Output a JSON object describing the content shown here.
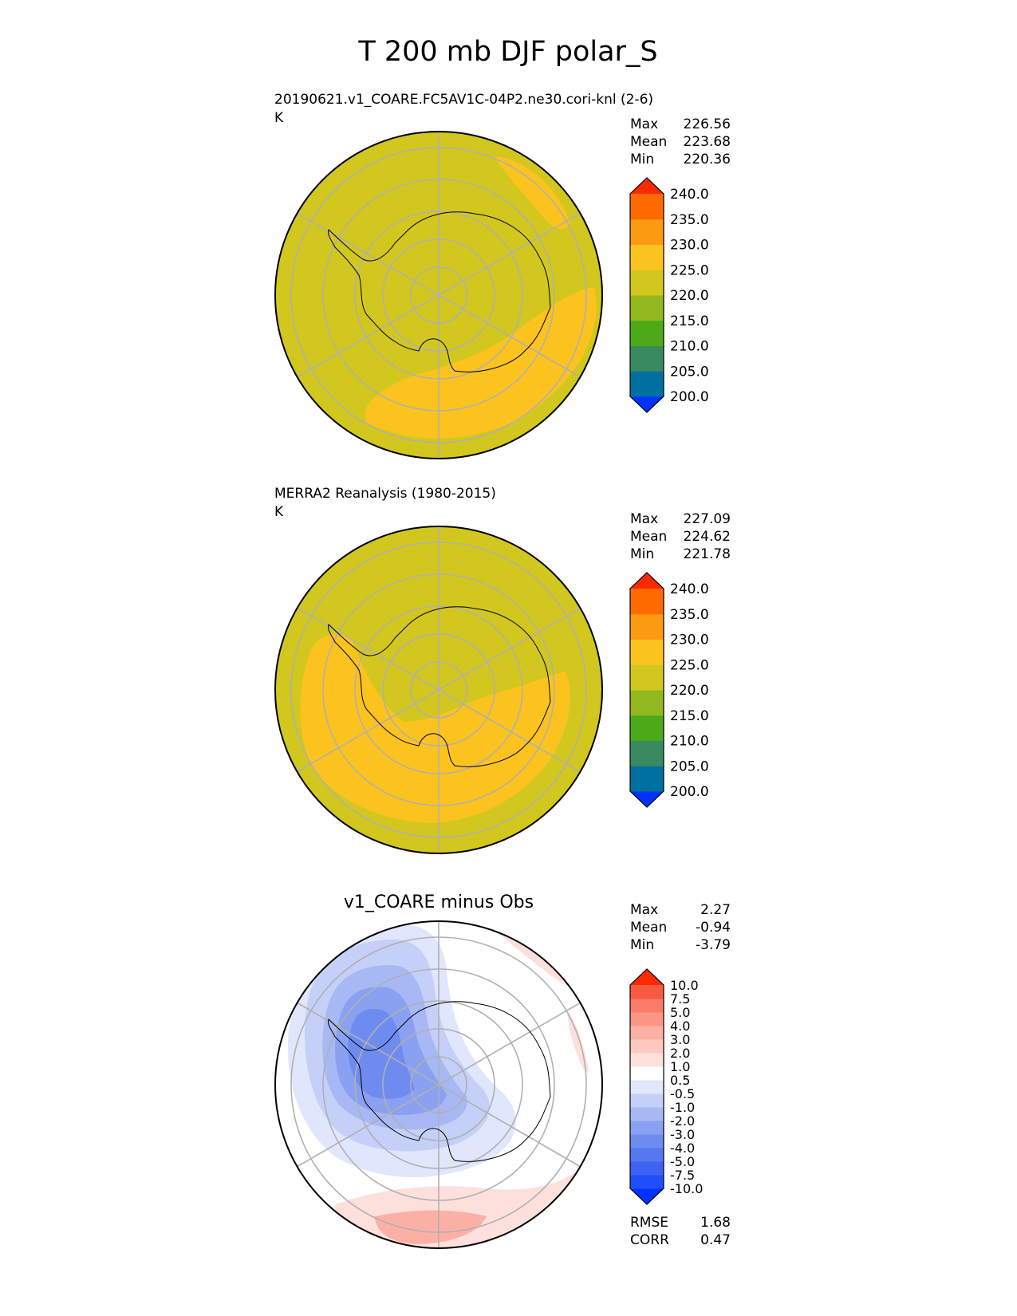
{
  "figure_title": "T 200 mb DJF polar_S",
  "chart_data": [
    {
      "type": "heatmap",
      "projection": "south polar stereographic",
      "title": "20190621.v1_COARE.FC5AV1C-04P2.ne30.cori-knl (2-6)",
      "units": "K",
      "stats": [
        {
          "label": "Max",
          "value": "226.56"
        },
        {
          "label": "Mean",
          "value": "223.68"
        },
        {
          "label": "Min",
          "value": "220.36"
        }
      ],
      "colorbar": {
        "levels": [
          "200.0",
          "205.0",
          "210.0",
          "215.0",
          "220.0",
          "225.0",
          "230.0",
          "235.0",
          "240.0"
        ],
        "colors": [
          "#0033ff",
          "#0070a0",
          "#3a8a60",
          "#4caa18",
          "#92b81e",
          "#d2c71e",
          "#fcc31e",
          "#fc9a12",
          "#fc6a00",
          "#fc2a00"
        ],
        "extend": "both"
      },
      "field": {
        "background_color": "#d2c71e",
        "features": [
          {
            "band": "225-230",
            "color": "#fcc31e",
            "description": "warm band from south Indian Ocean to New Zealand sector"
          },
          {
            "band": "225-230",
            "color": "#fcc31e",
            "description": "warm patch near 180 longitude"
          }
        ]
      }
    },
    {
      "type": "heatmap",
      "projection": "south polar stereographic",
      "title": "MERRA2 Reanalysis (1980-2015)",
      "units": "K",
      "stats": [
        {
          "label": "Max",
          "value": "227.09"
        },
        {
          "label": "Mean",
          "value": "224.62"
        },
        {
          "label": "Min",
          "value": "221.78"
        }
      ],
      "colorbar": {
        "levels": [
          "200.0",
          "205.0",
          "210.0",
          "215.0",
          "220.0",
          "225.0",
          "230.0",
          "235.0",
          "240.0"
        ],
        "colors": [
          "#0033ff",
          "#0070a0",
          "#3a8a60",
          "#4caa18",
          "#92b81e",
          "#d2c71e",
          "#fcc31e",
          "#fc9a12",
          "#fc6a00",
          "#fc2a00"
        ],
        "extend": "both"
      },
      "field": {
        "background_color": "#d2c71e",
        "features": [
          {
            "band": "225-230",
            "color": "#fcc31e",
            "description": "broad warm ring from Atlantic through Indian Ocean to Pacific sector"
          }
        ]
      }
    },
    {
      "type": "heatmap",
      "projection": "south polar stereographic",
      "title": "v1_COARE minus Obs",
      "units": "",
      "stats": [
        {
          "label": "Max",
          "value": "2.27"
        },
        {
          "label": "Mean",
          "value": "-0.94"
        },
        {
          "label": "Min",
          "value": "-3.79"
        }
      ],
      "metrics": [
        {
          "label": "RMSE",
          "value": "1.68"
        },
        {
          "label": "CORR",
          "value": "0.47"
        }
      ],
      "colorbar": {
        "levels": [
          "-10.0",
          "-7.5",
          "-5.0",
          "-4.0",
          "-3.0",
          "-2.0",
          "-1.0",
          "-0.5",
          "0.5",
          "1.0",
          "2.0",
          "3.0",
          "4.0",
          "5.0",
          "7.5",
          "10.0"
        ],
        "colors": [
          "#0033ff",
          "#1f4ff8",
          "#3d63f2",
          "#5577f0",
          "#6e8cf0",
          "#8aa1f2",
          "#a7b8f5",
          "#c4d0f8",
          "#e0e6fb",
          "#ffffff",
          "#fde0dc",
          "#fdc8c0",
          "#fcb0a5",
          "#fb9686",
          "#fa7c68",
          "#f75a3e",
          "#fc2a00"
        ],
        "extend": "both"
      },
      "field": {
        "background_color": "#ffffff",
        "features": [
          {
            "band": "-3 to -2",
            "color": "#6e8cf0",
            "description": "cold anomaly over Antarctic Peninsula and Weddell sector"
          },
          {
            "band": "0.5 to 2",
            "color": "#fcb0a5",
            "description": "warm anomaly near 180 longitude"
          }
        ]
      }
    }
  ]
}
